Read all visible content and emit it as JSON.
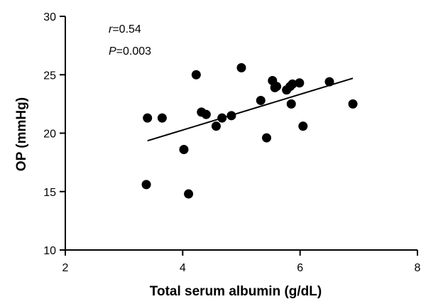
{
  "chart_data": {
    "type": "scatter",
    "xlabel": "Total serum albumin (g/dL)",
    "ylabel": "OP (mmHg)",
    "xlim": [
      2,
      8
    ],
    "ylim": [
      10,
      30
    ],
    "xticks": [
      2,
      4,
      6,
      8
    ],
    "yticks": [
      10,
      15,
      20,
      25,
      30
    ],
    "grid": false,
    "annotations": {
      "r_symbol": "r",
      "r_value": "=0.54",
      "p_symbol": "P",
      "p_value": "=0.003"
    },
    "points": [
      {
        "x": 3.38,
        "y": 15.6
      },
      {
        "x": 3.4,
        "y": 21.3
      },
      {
        "x": 3.65,
        "y": 21.3
      },
      {
        "x": 4.02,
        "y": 18.6
      },
      {
        "x": 4.1,
        "y": 14.8
      },
      {
        "x": 4.23,
        "y": 25.0
      },
      {
        "x": 4.32,
        "y": 21.8
      },
      {
        "x": 4.4,
        "y": 21.6
      },
      {
        "x": 4.57,
        "y": 20.6
      },
      {
        "x": 4.67,
        "y": 21.3
      },
      {
        "x": 4.83,
        "y": 21.5
      },
      {
        "x": 5.0,
        "y": 25.6
      },
      {
        "x": 5.33,
        "y": 22.8
      },
      {
        "x": 5.43,
        "y": 19.6
      },
      {
        "x": 5.53,
        "y": 24.5
      },
      {
        "x": 5.57,
        "y": 23.9
      },
      {
        "x": 5.6,
        "y": 24.0
      },
      {
        "x": 5.77,
        "y": 23.7
      },
      {
        "x": 5.83,
        "y": 24.0
      },
      {
        "x": 5.85,
        "y": 22.5
      },
      {
        "x": 5.87,
        "y": 24.2
      },
      {
        "x": 5.99,
        "y": 24.3
      },
      {
        "x": 6.05,
        "y": 20.6
      },
      {
        "x": 6.5,
        "y": 24.4
      },
      {
        "x": 6.9,
        "y": 22.5
      }
    ],
    "trendline": {
      "x": [
        3.4,
        6.9
      ],
      "y": [
        19.35,
        24.7
      ]
    },
    "colors": {
      "marker": "#000000",
      "line": "#000000",
      "axis": "#000000"
    }
  }
}
